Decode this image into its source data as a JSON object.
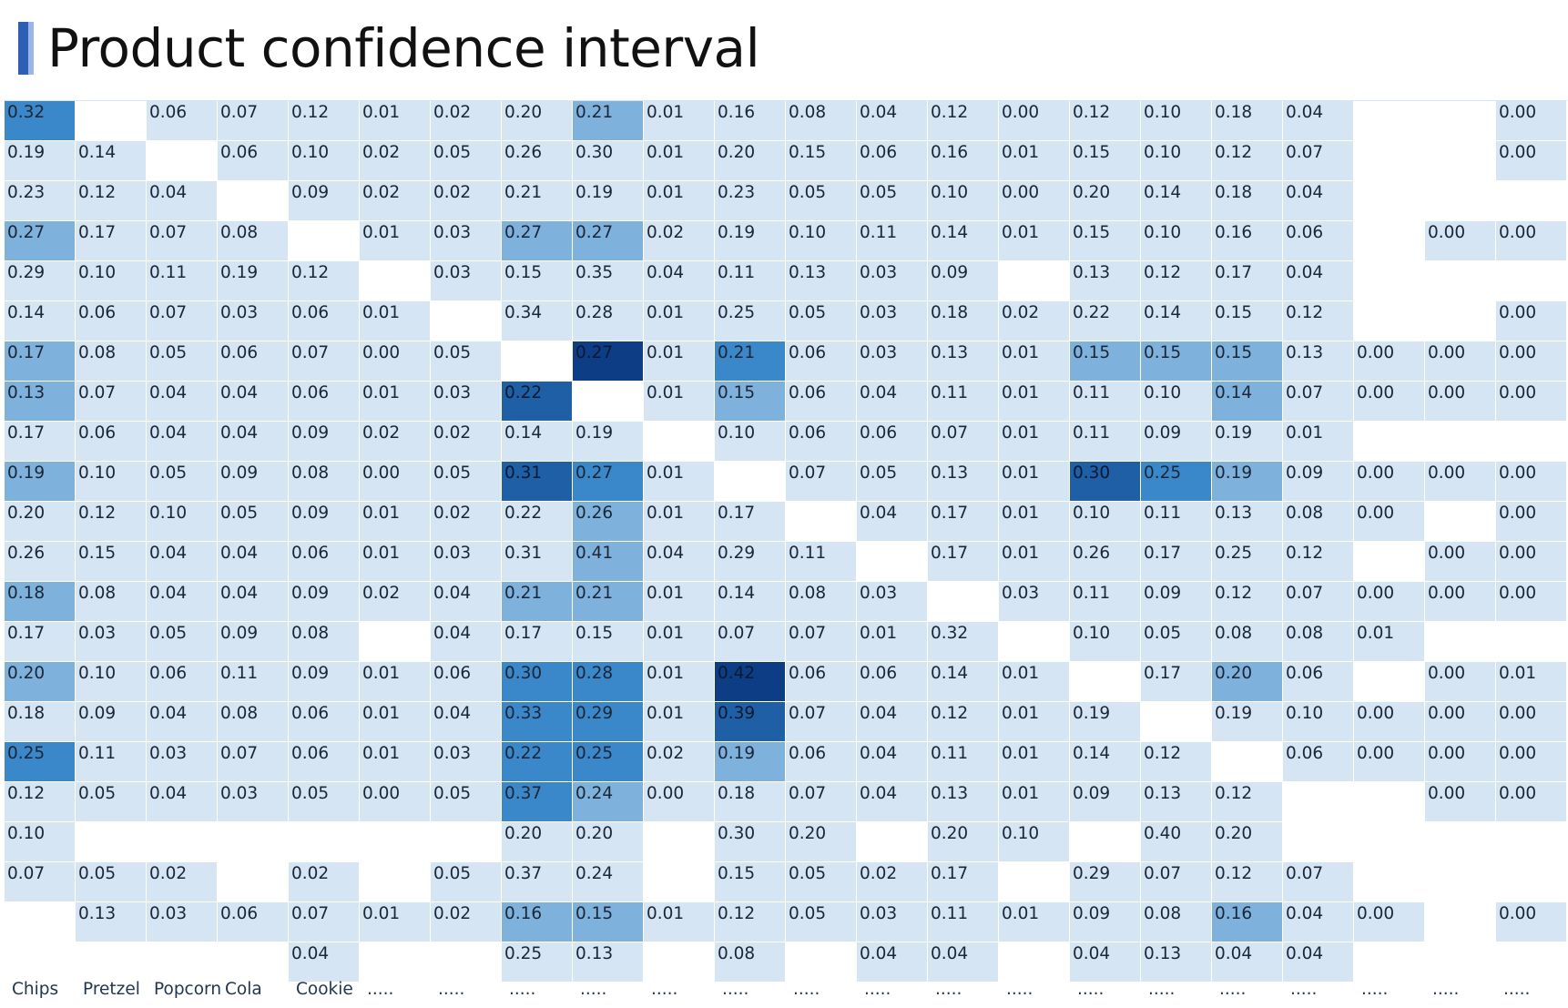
{
  "header": {
    "title": "Product confidence interval"
  },
  "table": {
    "columns": [
      "Chips",
      "Pretzel",
      "Popcorn",
      "Cola",
      "Cookie",
      ".....",
      ".....",
      ".....",
      ".....",
      ".....",
      ".....",
      ".....",
      ".....",
      ".....",
      ".....",
      ".....",
      ".....",
      ".....",
      ".....",
      ".....",
      ".....",
      "....."
    ],
    "palette": [
      "#ffffff",
      "#d5e5f4",
      "#7fb1dd",
      "#3a87c9",
      "#1f5fa6",
      "#0d3d85"
    ],
    "rows": [
      [
        "0.32",
        null,
        "0.06",
        "0.07",
        "0.12",
        "0.01",
        "0.02",
        "0.20",
        "0.21",
        "0.01",
        "0.16",
        "0.08",
        "0.04",
        "0.12",
        "0.00",
        "0.12",
        "0.10",
        "0.18",
        "0.04",
        null,
        null,
        "0.00"
      ],
      [
        "0.19",
        "0.14",
        null,
        "0.06",
        "0.10",
        "0.02",
        "0.05",
        "0.26",
        "0.30",
        "0.01",
        "0.20",
        "0.15",
        "0.06",
        "0.16",
        "0.01",
        "0.15",
        "0.10",
        "0.12",
        "0.07",
        null,
        null,
        "0.00"
      ],
      [
        "0.23",
        "0.12",
        "0.04",
        null,
        "0.09",
        "0.02",
        "0.02",
        "0.21",
        "0.19",
        "0.01",
        "0.23",
        "0.05",
        "0.05",
        "0.10",
        "0.00",
        "0.20",
        "0.14",
        "0.18",
        "0.04",
        null,
        null,
        null
      ],
      [
        "0.27",
        "0.17",
        "0.07",
        "0.08",
        null,
        "0.01",
        "0.03",
        "0.27",
        "0.27",
        "0.02",
        "0.19",
        "0.10",
        "0.11",
        "0.14",
        "0.01",
        "0.15",
        "0.10",
        "0.16",
        "0.06",
        null,
        "0.00",
        "0.00"
      ],
      [
        "0.29",
        "0.10",
        "0.11",
        "0.19",
        "0.12",
        null,
        "0.03",
        "0.15",
        "0.35",
        "0.04",
        "0.11",
        "0.13",
        "0.03",
        "0.09",
        null,
        "0.13",
        "0.12",
        "0.17",
        "0.04",
        null,
        null,
        null
      ],
      [
        "0.14",
        "0.06",
        "0.07",
        "0.03",
        "0.06",
        "0.01",
        null,
        "0.34",
        "0.28",
        "0.01",
        "0.25",
        "0.05",
        "0.03",
        "0.18",
        "0.02",
        "0.22",
        "0.14",
        "0.15",
        "0.12",
        null,
        null,
        "0.00"
      ],
      [
        "0.17",
        "0.08",
        "0.05",
        "0.06",
        "0.07",
        "0.00",
        "0.05",
        null,
        "0.27",
        "0.01",
        "0.21",
        "0.06",
        "0.03",
        "0.13",
        "0.01",
        "0.15",
        "0.15",
        "0.15",
        "0.13",
        "0.00",
        "0.00",
        "0.00"
      ],
      [
        "0.13",
        "0.07",
        "0.04",
        "0.04",
        "0.06",
        "0.01",
        "0.03",
        "0.22",
        null,
        "0.01",
        "0.15",
        "0.06",
        "0.04",
        "0.11",
        "0.01",
        "0.11",
        "0.10",
        "0.14",
        "0.07",
        "0.00",
        "0.00",
        "0.00"
      ],
      [
        "0.17",
        "0.06",
        "0.04",
        "0.04",
        "0.09",
        "0.02",
        "0.02",
        "0.14",
        "0.19",
        null,
        "0.10",
        "0.06",
        "0.06",
        "0.07",
        "0.01",
        "0.11",
        "0.09",
        "0.19",
        "0.01",
        null,
        null,
        null
      ],
      [
        "0.19",
        "0.10",
        "0.05",
        "0.09",
        "0.08",
        "0.00",
        "0.05",
        "0.31",
        "0.27",
        "0.01",
        null,
        "0.07",
        "0.05",
        "0.13",
        "0.01",
        "0.30",
        "0.25",
        "0.19",
        "0.09",
        "0.00",
        "0.00",
        "0.00"
      ],
      [
        "0.20",
        "0.12",
        "0.10",
        "0.05",
        "0.09",
        "0.01",
        "0.02",
        "0.22",
        "0.26",
        "0.01",
        "0.17",
        null,
        "0.04",
        "0.17",
        "0.01",
        "0.10",
        "0.11",
        "0.13",
        "0.08",
        "0.00",
        null,
        "0.00"
      ],
      [
        "0.26",
        "0.15",
        "0.04",
        "0.04",
        "0.06",
        "0.01",
        "0.03",
        "0.31",
        "0.41",
        "0.04",
        "0.29",
        "0.11",
        null,
        "0.17",
        "0.01",
        "0.26",
        "0.17",
        "0.25",
        "0.12",
        null,
        "0.00",
        "0.00"
      ],
      [
        "0.18",
        "0.08",
        "0.04",
        "0.04",
        "0.09",
        "0.02",
        "0.04",
        "0.21",
        "0.21",
        "0.01",
        "0.14",
        "0.08",
        "0.03",
        null,
        "0.03",
        "0.11",
        "0.09",
        "0.12",
        "0.07",
        "0.00",
        "0.00",
        "0.00"
      ],
      [
        "0.17",
        "0.03",
        "0.05",
        "0.09",
        "0.08",
        null,
        "0.04",
        "0.17",
        "0.15",
        "0.01",
        "0.07",
        "0.07",
        "0.01",
        "0.32",
        null,
        "0.10",
        "0.05",
        "0.08",
        "0.08",
        "0.01",
        null,
        null
      ],
      [
        "0.20",
        "0.10",
        "0.06",
        "0.11",
        "0.09",
        "0.01",
        "0.06",
        "0.30",
        "0.28",
        "0.01",
        "0.42",
        "0.06",
        "0.06",
        "0.14",
        "0.01",
        null,
        "0.17",
        "0.20",
        "0.06",
        null,
        "0.00",
        "0.01"
      ],
      [
        "0.18",
        "0.09",
        "0.04",
        "0.08",
        "0.06",
        "0.01",
        "0.04",
        "0.33",
        "0.29",
        "0.01",
        "0.39",
        "0.07",
        "0.04",
        "0.12",
        "0.01",
        "0.19",
        null,
        "0.19",
        "0.10",
        "0.00",
        "0.00",
        "0.00"
      ],
      [
        "0.25",
        "0.11",
        "0.03",
        "0.07",
        "0.06",
        "0.01",
        "0.03",
        "0.22",
        "0.25",
        "0.02",
        "0.19",
        "0.06",
        "0.04",
        "0.11",
        "0.01",
        "0.14",
        "0.12",
        null,
        "0.06",
        "0.00",
        "0.00",
        "0.00"
      ],
      [
        "0.12",
        "0.05",
        "0.04",
        "0.03",
        "0.05",
        "0.00",
        "0.05",
        "0.37",
        "0.24",
        "0.00",
        "0.18",
        "0.07",
        "0.04",
        "0.13",
        "0.01",
        "0.09",
        "0.13",
        "0.12",
        null,
        null,
        "0.00",
        "0.00"
      ],
      [
        "0.10",
        null,
        null,
        null,
        null,
        null,
        null,
        "0.20",
        "0.20",
        null,
        "0.30",
        "0.20",
        null,
        "0.20",
        "0.10",
        null,
        "0.40",
        "0.20",
        null,
        null,
        null,
        null
      ],
      [
        "0.07",
        "0.05",
        "0.02",
        null,
        "0.02",
        null,
        "0.05",
        "0.37",
        "0.24",
        null,
        "0.15",
        "0.05",
        "0.02",
        "0.17",
        null,
        "0.29",
        "0.07",
        "0.12",
        "0.07",
        null,
        null,
        null
      ],
      [
        null,
        "0.13",
        "0.03",
        "0.06",
        "0.07",
        "0.01",
        "0.02",
        "0.16",
        "0.15",
        "0.01",
        "0.12",
        "0.05",
        "0.03",
        "0.11",
        "0.01",
        "0.09",
        "0.08",
        "0.16",
        "0.04",
        "0.00",
        null,
        "0.00"
      ],
      [
        null,
        null,
        null,
        null,
        "0.04",
        null,
        null,
        "0.25",
        "0.13",
        null,
        "0.08",
        null,
        "0.04",
        "0.04",
        null,
        "0.04",
        "0.13",
        "0.04",
        "0.04",
        null,
        null,
        null
      ]
    ],
    "shades": [
      [
        3,
        0,
        1,
        1,
        1,
        1,
        1,
        1,
        2,
        1,
        1,
        1,
        1,
        1,
        1,
        1,
        1,
        1,
        1,
        0,
        0,
        1
      ],
      [
        1,
        1,
        0,
        1,
        1,
        1,
        1,
        1,
        1,
        1,
        1,
        1,
        1,
        1,
        1,
        1,
        1,
        1,
        1,
        0,
        0,
        1
      ],
      [
        1,
        1,
        1,
        0,
        1,
        1,
        1,
        1,
        1,
        1,
        1,
        1,
        1,
        1,
        1,
        1,
        1,
        1,
        1,
        0,
        0,
        0
      ],
      [
        2,
        1,
        1,
        1,
        0,
        1,
        1,
        2,
        2,
        1,
        1,
        1,
        1,
        1,
        1,
        1,
        1,
        1,
        1,
        0,
        1,
        1
      ],
      [
        1,
        1,
        1,
        1,
        1,
        0,
        1,
        1,
        1,
        1,
        1,
        1,
        1,
        1,
        0,
        1,
        1,
        1,
        1,
        0,
        0,
        0
      ],
      [
        1,
        1,
        1,
        1,
        1,
        1,
        0,
        1,
        1,
        1,
        1,
        1,
        1,
        1,
        1,
        1,
        1,
        1,
        1,
        0,
        0,
        1
      ],
      [
        2,
        1,
        1,
        1,
        1,
        1,
        1,
        0,
        5,
        1,
        3,
        1,
        1,
        1,
        1,
        2,
        2,
        2,
        1,
        1,
        1,
        1
      ],
      [
        2,
        1,
        1,
        1,
        1,
        1,
        1,
        4,
        0,
        1,
        2,
        1,
        1,
        1,
        1,
        1,
        1,
        2,
        1,
        1,
        1,
        1
      ],
      [
        1,
        1,
        1,
        1,
        1,
        1,
        1,
        1,
        1,
        0,
        1,
        1,
        1,
        1,
        1,
        1,
        1,
        1,
        1,
        0,
        0,
        0
      ],
      [
        2,
        1,
        1,
        1,
        1,
        1,
        1,
        4,
        3,
        1,
        0,
        1,
        1,
        1,
        1,
        4,
        3,
        2,
        1,
        1,
        1,
        1
      ],
      [
        1,
        1,
        1,
        1,
        1,
        1,
        1,
        1,
        2,
        1,
        1,
        0,
        1,
        1,
        1,
        1,
        1,
        1,
        1,
        1,
        0,
        1
      ],
      [
        1,
        1,
        1,
        1,
        1,
        1,
        1,
        1,
        2,
        1,
        1,
        1,
        0,
        1,
        1,
        1,
        1,
        1,
        1,
        0,
        1,
        1
      ],
      [
        2,
        1,
        1,
        1,
        1,
        1,
        1,
        2,
        2,
        1,
        1,
        1,
        1,
        0,
        1,
        1,
        1,
        1,
        1,
        1,
        1,
        1
      ],
      [
        1,
        1,
        1,
        1,
        1,
        0,
        1,
        1,
        1,
        1,
        1,
        1,
        1,
        1,
        0,
        1,
        1,
        1,
        1,
        1,
        0,
        0
      ],
      [
        2,
        1,
        1,
        1,
        1,
        1,
        1,
        3,
        3,
        1,
        5,
        1,
        1,
        1,
        1,
        0,
        1,
        2,
        1,
        0,
        1,
        1
      ],
      [
        1,
        1,
        1,
        1,
        1,
        1,
        1,
        3,
        3,
        1,
        4,
        1,
        1,
        1,
        1,
        1,
        0,
        1,
        1,
        1,
        1,
        1
      ],
      [
        3,
        1,
        1,
        1,
        1,
        1,
        1,
        3,
        3,
        1,
        2,
        1,
        1,
        1,
        1,
        1,
        1,
        0,
        1,
        1,
        1,
        1
      ],
      [
        1,
        1,
        1,
        1,
        1,
        1,
        1,
        3,
        2,
        1,
        1,
        1,
        1,
        1,
        1,
        1,
        1,
        1,
        0,
        0,
        1,
        1
      ],
      [
        1,
        0,
        0,
        0,
        0,
        0,
        0,
        1,
        1,
        0,
        1,
        1,
        0,
        1,
        1,
        0,
        1,
        1,
        0,
        0,
        0,
        0
      ],
      [
        1,
        1,
        1,
        0,
        1,
        0,
        1,
        1,
        1,
        0,
        1,
        1,
        1,
        1,
        0,
        1,
        1,
        1,
        1,
        0,
        0,
        0
      ],
      [
        0,
        1,
        1,
        1,
        1,
        1,
        1,
        2,
        2,
        1,
        1,
        1,
        1,
        1,
        1,
        1,
        1,
        2,
        1,
        1,
        0,
        1
      ],
      [
        0,
        0,
        0,
        0,
        1,
        0,
        0,
        1,
        1,
        0,
        1,
        0,
        1,
        1,
        0,
        1,
        1,
        1,
        1,
        0,
        0,
        0
      ]
    ]
  }
}
